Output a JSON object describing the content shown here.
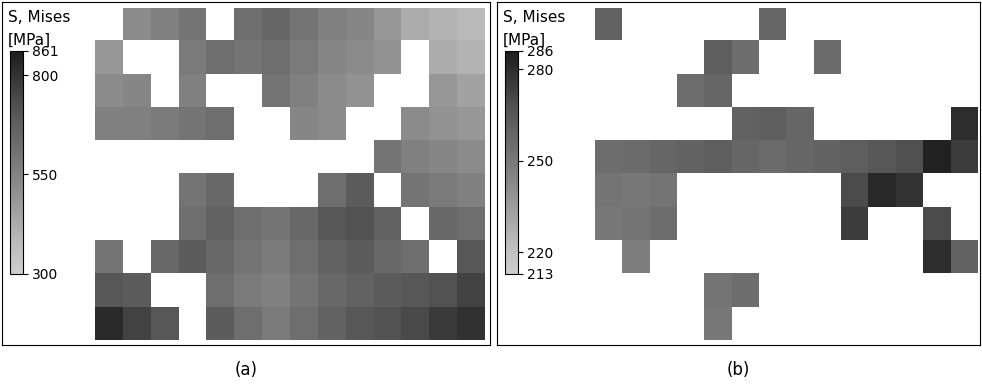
{
  "chart_data": [
    {
      "type": "heatmap",
      "label": "(a)",
      "tick_labels": false,
      "colorbar": {
        "title": "S, Mises",
        "unit": "[MPa]",
        "range": [
          300,
          861
        ],
        "ticks": [
          300,
          550,
          800,
          861
        ]
      },
      "cells": [
        [
          null,
          520,
          560,
          600,
          null,
          620,
          650,
          600,
          560,
          540,
          480,
          420,
          400,
          380
        ],
        [
          480,
          null,
          null,
          580,
          620,
          600,
          620,
          580,
          540,
          520,
          500,
          null,
          420,
          400
        ],
        [
          520,
          540,
          null,
          560,
          null,
          null,
          600,
          560,
          520,
          500,
          null,
          null,
          480,
          450
        ],
        [
          560,
          560,
          580,
          600,
          620,
          null,
          null,
          540,
          520,
          null,
          null,
          520,
          500,
          480
        ],
        [
          null,
          null,
          null,
          null,
          null,
          null,
          null,
          null,
          null,
          null,
          600,
          560,
          540,
          520
        ],
        [
          null,
          null,
          null,
          600,
          640,
          null,
          null,
          null,
          620,
          680,
          null,
          600,
          580,
          560
        ],
        [
          null,
          null,
          null,
          620,
          660,
          620,
          600,
          640,
          700,
          720,
          660,
          null,
          640,
          620
        ],
        [
          600,
          null,
          640,
          680,
          640,
          600,
          580,
          620,
          660,
          680,
          640,
          620,
          null,
          700
        ],
        [
          700,
          680,
          null,
          null,
          620,
          580,
          560,
          600,
          640,
          660,
          680,
          700,
          720,
          760
        ],
        [
          820,
          760,
          700,
          null,
          680,
          620,
          580,
          620,
          660,
          700,
          720,
          740,
          780,
          800
        ]
      ]
    },
    {
      "type": "heatmap",
      "label": "(b)",
      "tick_labels": false,
      "colorbar": {
        "title": "S, Mises",
        "unit": "[MPa]",
        "range": [
          213,
          286
        ],
        "ticks": [
          213,
          220,
          250,
          280,
          286
        ]
      },
      "cells": [
        [
          260,
          null,
          null,
          null,
          null,
          null,
          258,
          null,
          null,
          null,
          null,
          null,
          null,
          null
        ],
        [
          null,
          null,
          null,
          null,
          262,
          255,
          null,
          null,
          256,
          null,
          null,
          null,
          null,
          null
        ],
        [
          null,
          null,
          null,
          255,
          258,
          null,
          null,
          null,
          null,
          null,
          null,
          null,
          null,
          null
        ],
        [
          null,
          null,
          null,
          null,
          null,
          260,
          262,
          258,
          null,
          null,
          null,
          null,
          null,
          280
        ],
        [
          255,
          256,
          258,
          260,
          262,
          258,
          256,
          258,
          260,
          262,
          265,
          268,
          284,
          275
        ],
        [
          252,
          250,
          252,
          null,
          null,
          null,
          null,
          null,
          null,
          270,
          282,
          278,
          null,
          null
        ],
        [
          250,
          252,
          255,
          null,
          null,
          null,
          null,
          null,
          null,
          275,
          null,
          null,
          270,
          null
        ],
        [
          null,
          248,
          null,
          null,
          null,
          null,
          null,
          null,
          null,
          null,
          null,
          null,
          280,
          260
        ],
        [
          null,
          null,
          null,
          null,
          252,
          255,
          null,
          null,
          null,
          null,
          null,
          null,
          null,
          null
        ],
        [
          null,
          null,
          null,
          null,
          250,
          null,
          null,
          null,
          null,
          null,
          null,
          null,
          null,
          null
        ]
      ]
    }
  ]
}
